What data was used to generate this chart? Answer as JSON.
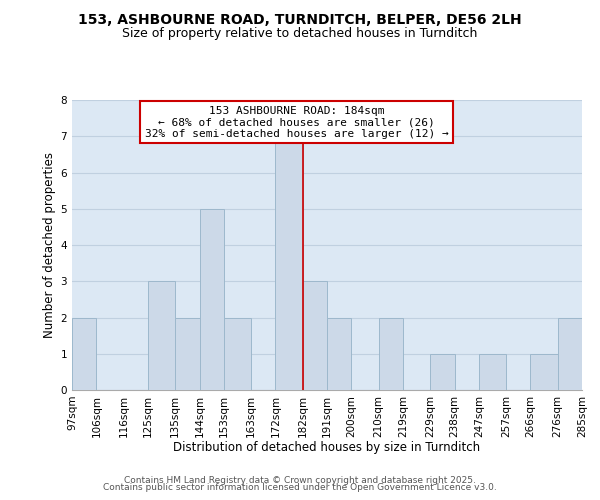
{
  "title": "153, ASHBOURNE ROAD, TURNDITCH, BELPER, DE56 2LH",
  "subtitle": "Size of property relative to detached houses in Turnditch",
  "xlabel": "Distribution of detached houses by size in Turnditch",
  "ylabel": "Number of detached properties",
  "bar_color": "#ccd9e8",
  "bar_edge_color": "#9db8cc",
  "grid_color": "#c0d0e0",
  "background_color": "#dce8f4",
  "bins": [
    97,
    106,
    116,
    125,
    135,
    144,
    153,
    163,
    172,
    182,
    191,
    200,
    210,
    219,
    229,
    238,
    247,
    257,
    266,
    276,
    285
  ],
  "heights": [
    2,
    0,
    0,
    3,
    2,
    5,
    2,
    0,
    7,
    3,
    2,
    0,
    2,
    0,
    1,
    0,
    1,
    0,
    1,
    2
  ],
  "red_line_x": 182,
  "ylim": [
    0,
    8
  ],
  "yticks": [
    0,
    1,
    2,
    3,
    4,
    5,
    6,
    7,
    8
  ],
  "annotation_title": "153 ASHBOURNE ROAD: 184sqm",
  "annotation_line2": "← 68% of detached houses are smaller (26)",
  "annotation_line3": "32% of semi-detached houses are larger (12) →",
  "annotation_box_edge": "#cc0000",
  "footer_line1": "Contains HM Land Registry data © Crown copyright and database right 2025.",
  "footer_line2": "Contains public sector information licensed under the Open Government Licence v3.0.",
  "title_fontsize": 10,
  "subtitle_fontsize": 9,
  "xlabel_fontsize": 8.5,
  "ylabel_fontsize": 8.5,
  "tick_fontsize": 7.5,
  "annotation_fontsize": 8,
  "footer_fontsize": 6.5
}
